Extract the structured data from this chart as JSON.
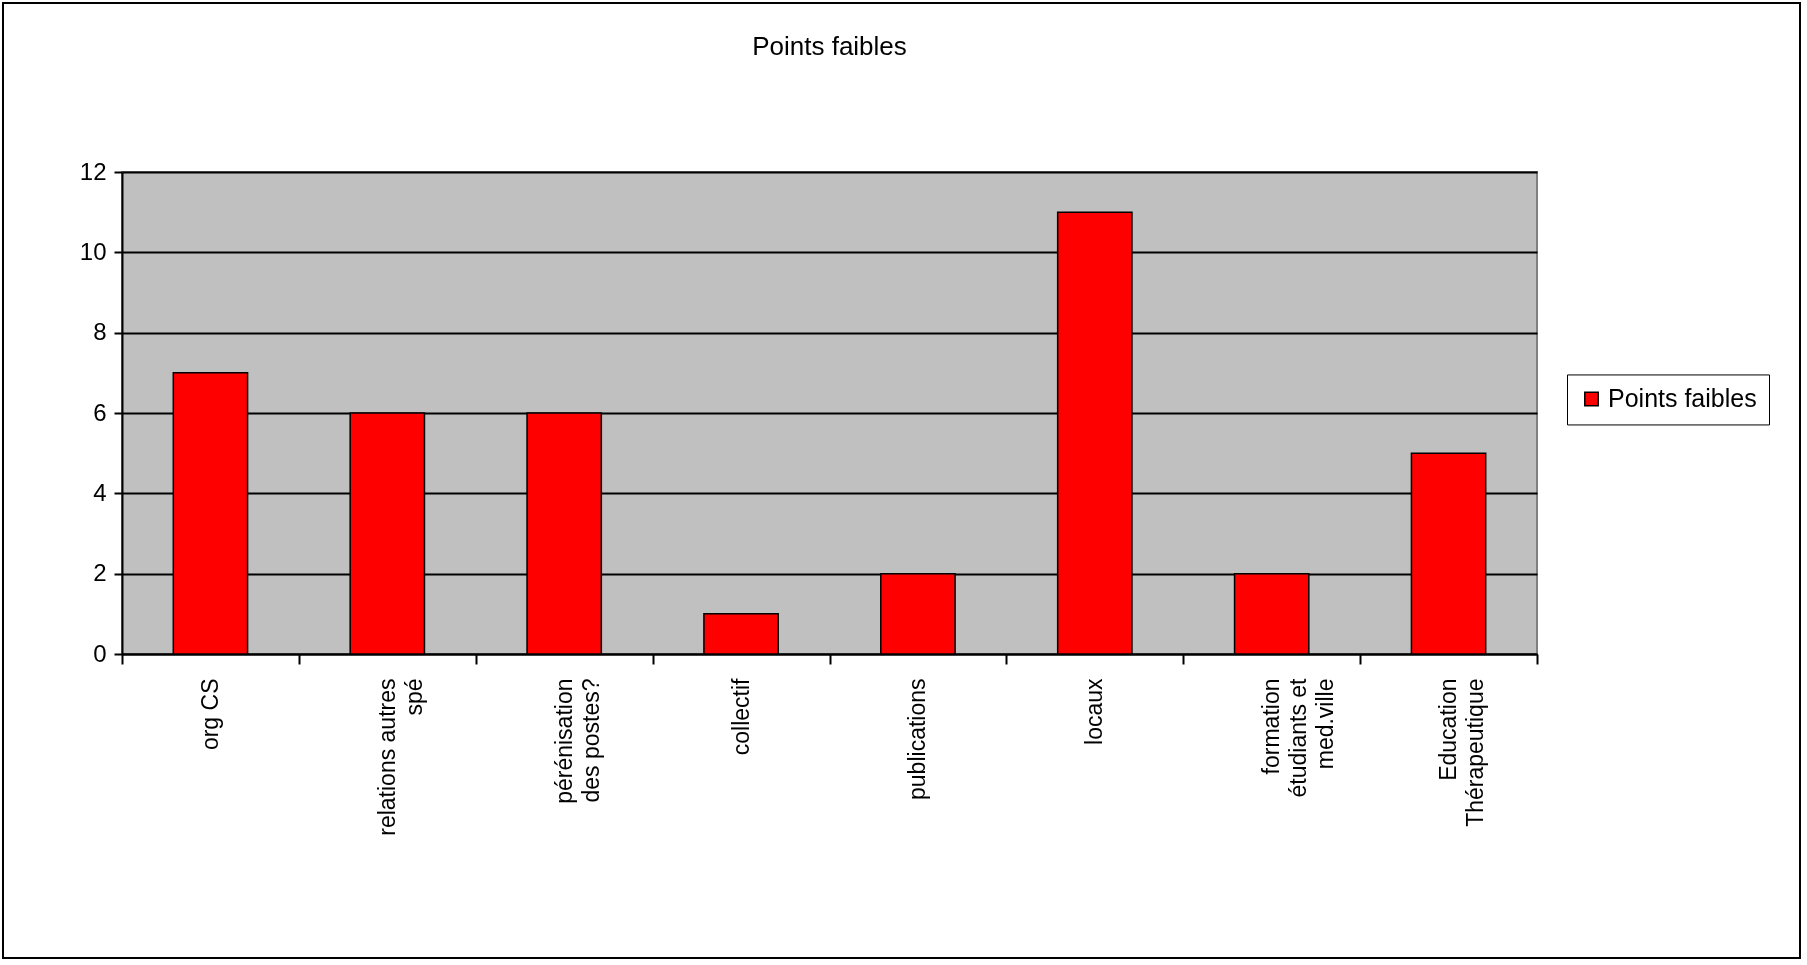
{
  "chart_data": {
    "type": "bar",
    "title": "Points faibles",
    "categories": [
      "org CS",
      "relations autres\nspé",
      "pérénisation\ndes postes?",
      "collectif",
      "publications",
      "locaux",
      "formation\nétudiants et\nmed.ville",
      "Education\nThérapeutique"
    ],
    "series": [
      {
        "name": "Points faibles",
        "color": "#ff0000",
        "values": [
          7,
          6,
          6,
          1,
          2,
          11,
          2,
          5
        ]
      }
    ],
    "ylim": [
      0,
      12
    ],
    "yticks": [
      0,
      2,
      4,
      6,
      8,
      10,
      12
    ],
    "grid": "y",
    "legend": "right"
  }
}
